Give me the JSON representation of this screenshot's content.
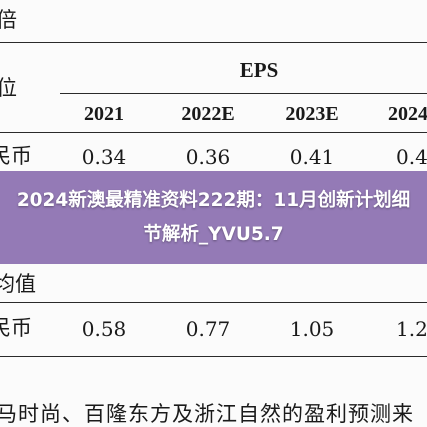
{
  "document": {
    "header_fragment_top": "倍",
    "header_fragment_unit": "位",
    "eps_label": "EPS",
    "years": [
      "2021",
      "2022E",
      "2023E",
      "2024"
    ],
    "row1": {
      "label_fragment": "民币",
      "values": [
        "0.34",
        "0.36",
        "0.41",
        "0.4"
      ]
    },
    "section_fragment": "均值",
    "row2": {
      "label_fragment": "民币",
      "values": [
        "0.58",
        "0.77",
        "1.05",
        "1.2"
      ]
    },
    "footer_text": "马时尚、百隆东方及浙江自然的盈利预测来"
  },
  "overlay": {
    "title": "2024新澳最精准资料222期：11月创新计划细节解析_YVU5.7"
  }
}
